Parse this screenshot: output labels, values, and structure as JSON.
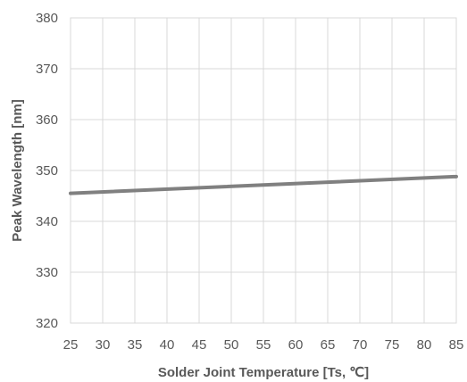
{
  "chart_data": {
    "type": "line",
    "title": "",
    "xlabel": "Solder Joint Temperature [Ts, ℃]",
    "ylabel": "Peak Wavelength [nm]",
    "xlim": [
      25,
      85
    ],
    "ylim": [
      320,
      380
    ],
    "xticks": [
      "25",
      "30",
      "35",
      "40",
      "45",
      "50",
      "55",
      "60",
      "65",
      "70",
      "75",
      "80",
      "85"
    ],
    "yticks": [
      "320",
      "330",
      "340",
      "350",
      "360",
      "370",
      "380"
    ],
    "grid": true,
    "legend": "none",
    "series": [
      {
        "color": "#808080",
        "x": [
          25,
          85
        ],
        "y": [
          345.5,
          348.8
        ]
      }
    ]
  }
}
